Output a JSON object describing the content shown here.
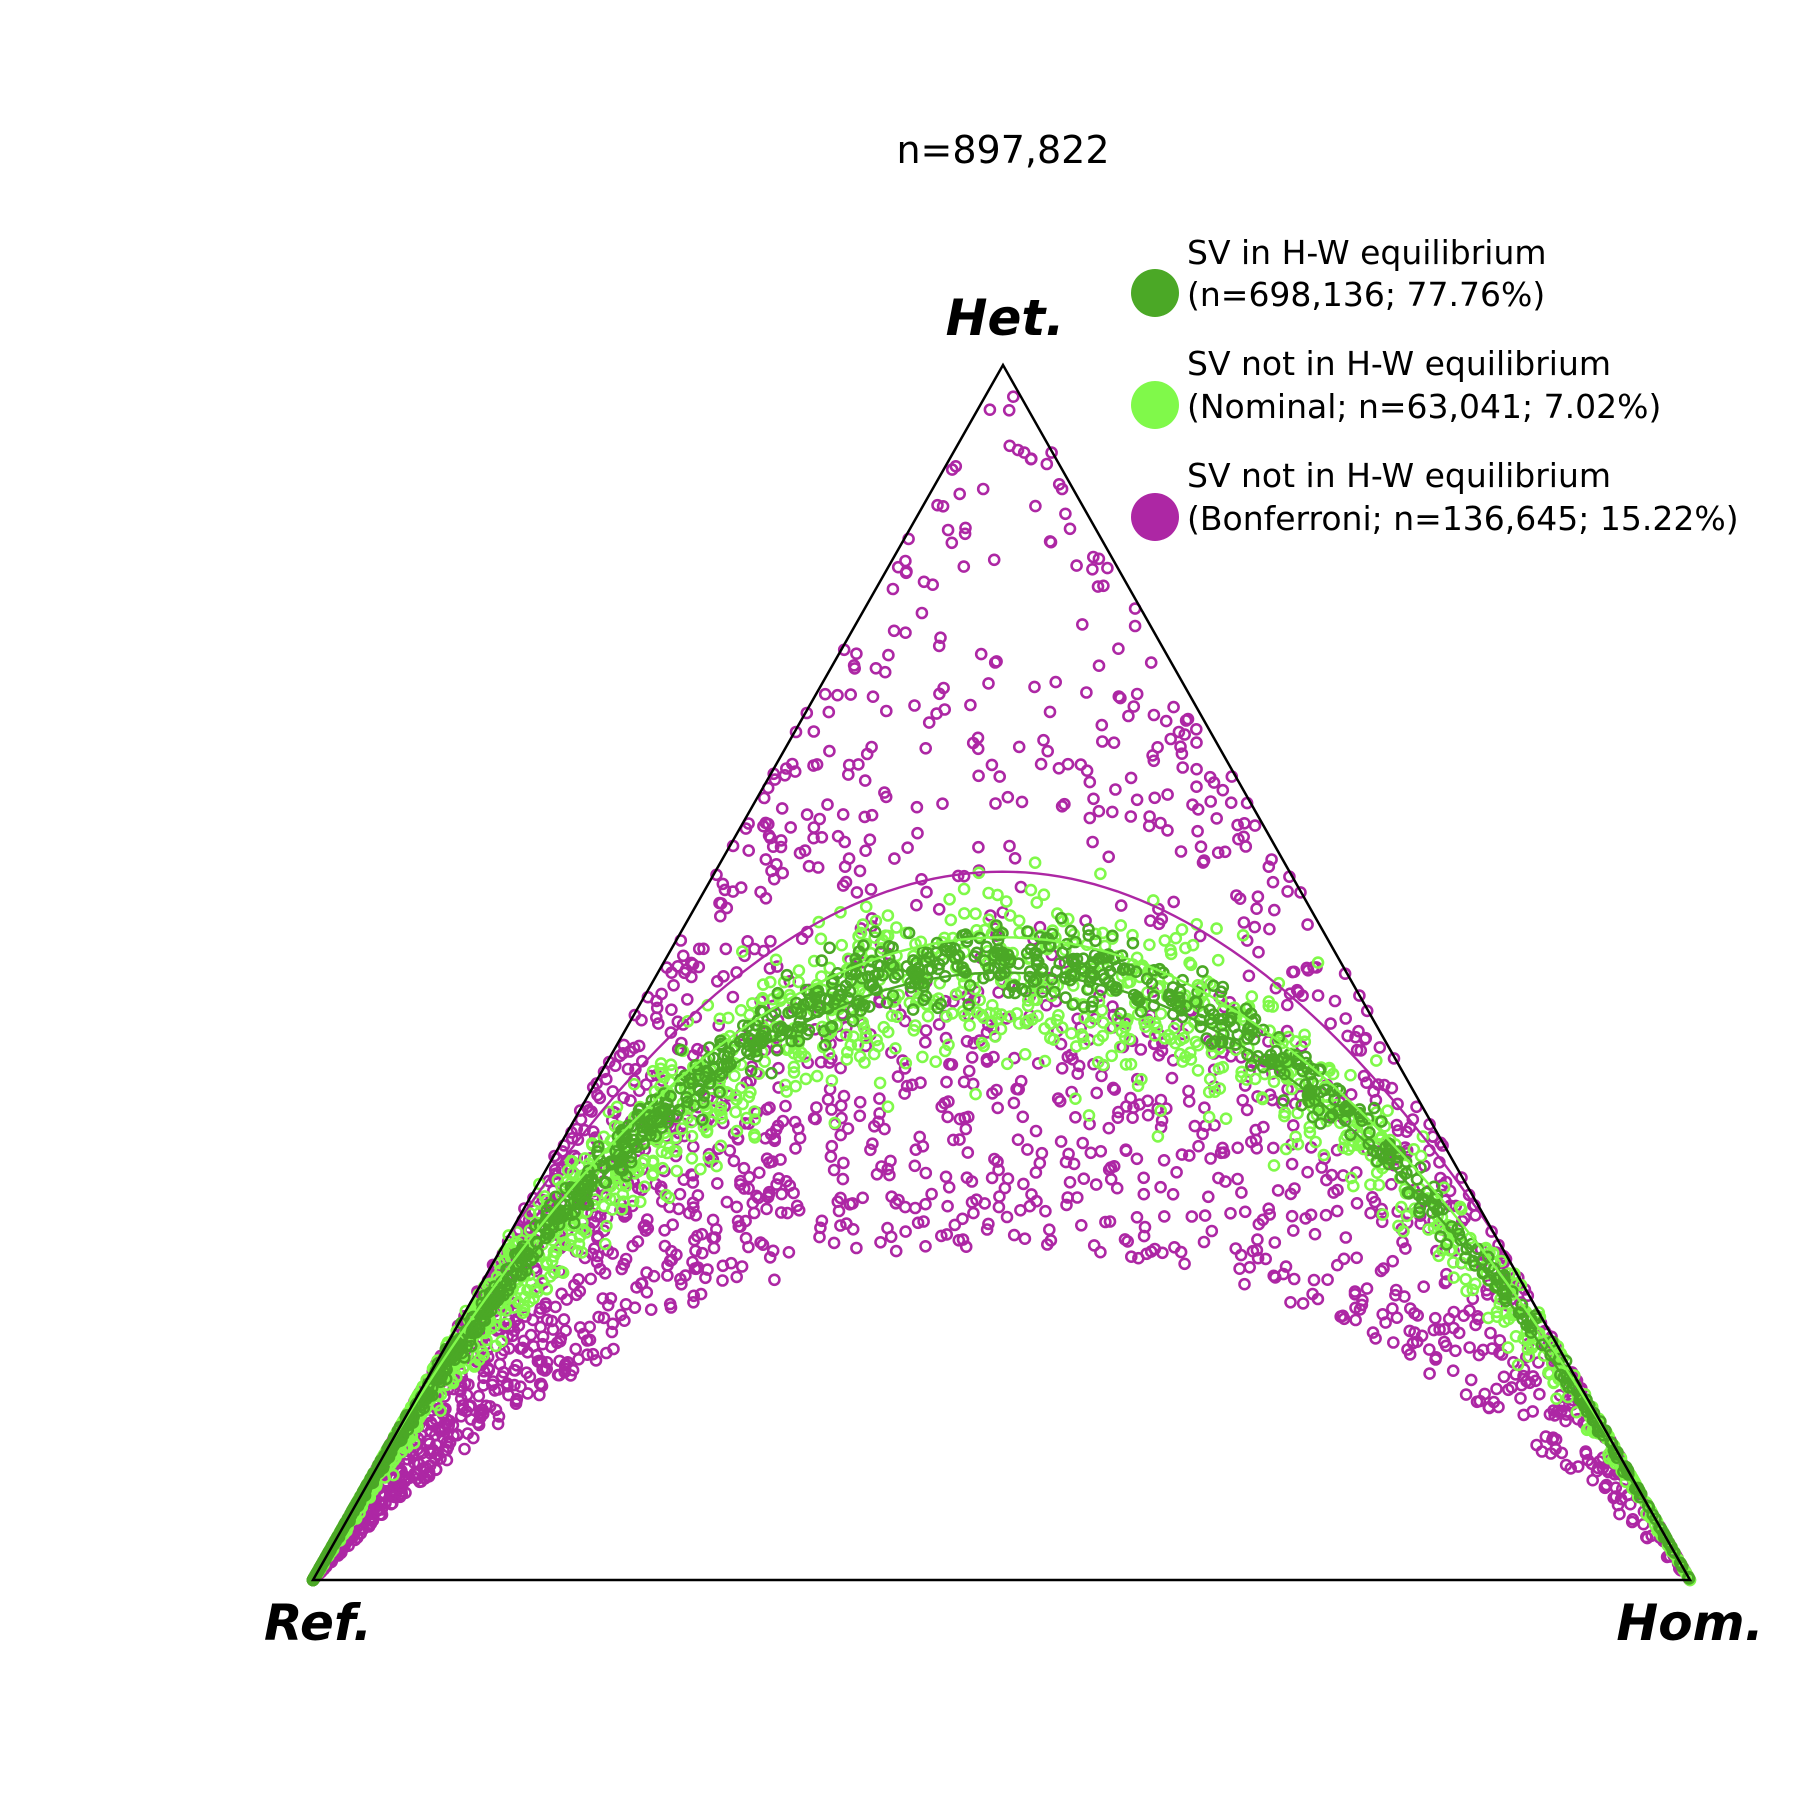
{
  "chart_data": {
    "type": "scatter",
    "plot_kind": "ternary",
    "title": "n=897,822",
    "vertices": {
      "top": "Het.",
      "left": "Ref.",
      "right": "Hom."
    },
    "legend_position": "top-right",
    "grid": false,
    "series": [
      {
        "key": "hwe",
        "legend_line1": "SV in H-W equilibrium",
        "legend_line2": "(n=698,136; 77.76%)",
        "color": "#4ba826"
      },
      {
        "key": "nominal",
        "legend_line1": "SV not in H-W equilibrium",
        "legend_line2": "(Nominal; n=63,041; 7.02%)",
        "color": "#80f94a"
      },
      {
        "key": "bonferroni",
        "legend_line1": "SV not in H-W equilibrium",
        "legend_line2": "(Bonferroni; n=136,645; 15.22%)",
        "color": "#ad27a4"
      }
    ],
    "reference_curves": [
      {
        "color": "#ad27a4",
        "het_at_half_allele_freq": 0.583
      },
      {
        "color": "#80f94a",
        "het_at_half_allele_freq": 0.529
      },
      {
        "color": "#4ba826",
        "het_at_half_allele_freq": 0.5
      }
    ]
  }
}
